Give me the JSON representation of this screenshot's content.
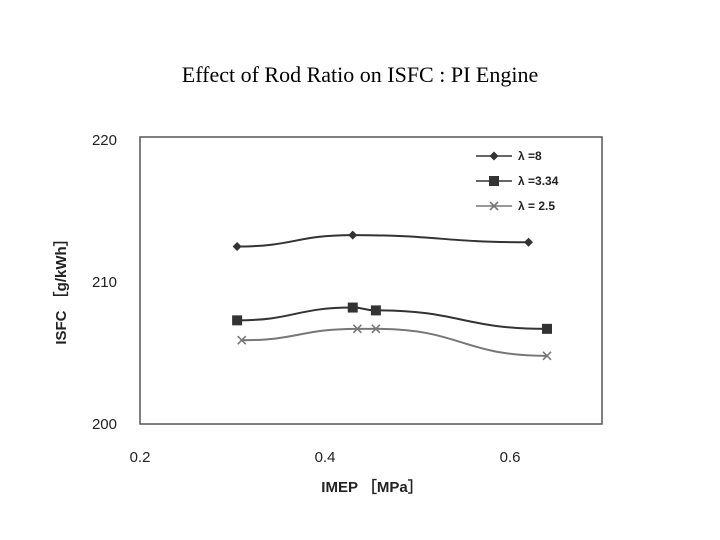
{
  "slide": {
    "title": "Effect of Rod Ratio on ISFC : PI Engine"
  },
  "chart_data": {
    "type": "line",
    "title": "",
    "xlabel": "IMEP ［MPa］",
    "ylabel": "ISFC ［g/kWh］",
    "xlim": [
      0.2,
      0.7
    ],
    "ylim": [
      200,
      220
    ],
    "xticks": [
      "0.2",
      "0.4",
      "0.6"
    ],
    "yticks": [
      "200",
      "210",
      "220"
    ],
    "grid": false,
    "legend_position": "top-right",
    "series": [
      {
        "name": "λ =8",
        "marker": "diamond",
        "color": "#333333",
        "x": [
          0.305,
          0.43,
          0.62
        ],
        "y": [
          212.5,
          213.3,
          212.8
        ]
      },
      {
        "name": "λ =3.34",
        "marker": "square",
        "color": "#333333",
        "x": [
          0.305,
          0.43,
          0.455,
          0.64
        ],
        "y": [
          207.3,
          208.2,
          208.0,
          206.7
        ]
      },
      {
        "name": "λ = 2.5",
        "marker": "x",
        "color": "#777777",
        "x": [
          0.31,
          0.435,
          0.455,
          0.64
        ],
        "y": [
          205.9,
          206.7,
          206.7,
          204.8
        ]
      }
    ]
  }
}
